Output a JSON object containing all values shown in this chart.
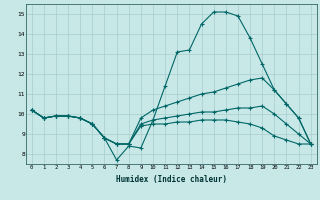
{
  "xlabel": "Humidex (Indice chaleur)",
  "background_color": "#c8e8e8",
  "grid_color": "#a8cccc",
  "line_color": "#006666",
  "xlim": [
    -0.5,
    23.5
  ],
  "ylim": [
    7.5,
    15.5
  ],
  "xticks": [
    0,
    1,
    2,
    3,
    4,
    5,
    6,
    7,
    8,
    9,
    10,
    11,
    12,
    13,
    14,
    15,
    16,
    17,
    18,
    19,
    20,
    21,
    22,
    23
  ],
  "yticks": [
    8,
    9,
    10,
    11,
    12,
    13,
    14,
    15
  ],
  "line1_x": [
    0,
    1,
    2,
    3,
    4,
    5,
    6,
    7,
    8,
    9,
    10,
    11,
    12,
    13,
    14,
    15,
    16,
    17,
    18,
    19,
    20,
    21,
    22,
    23
  ],
  "line1_y": [
    10.2,
    9.8,
    9.9,
    9.9,
    9.8,
    9.5,
    8.8,
    7.7,
    8.4,
    8.3,
    9.7,
    11.4,
    13.1,
    13.2,
    14.5,
    15.1,
    15.1,
    14.9,
    13.8,
    12.5,
    11.2,
    10.5,
    9.8,
    8.5
  ],
  "line2_x": [
    0,
    1,
    2,
    3,
    4,
    5,
    6,
    7,
    8,
    9,
    10,
    11,
    12,
    13,
    14,
    15,
    16,
    17,
    18,
    19,
    20,
    21,
    22,
    23
  ],
  "line2_y": [
    10.2,
    9.8,
    9.9,
    9.9,
    9.8,
    9.5,
    8.8,
    8.5,
    8.5,
    9.8,
    10.2,
    10.4,
    10.6,
    10.8,
    11.0,
    11.1,
    11.3,
    11.5,
    11.7,
    11.8,
    11.2,
    10.5,
    9.8,
    8.5
  ],
  "line3_x": [
    0,
    1,
    2,
    3,
    4,
    5,
    6,
    7,
    8,
    9,
    10,
    11,
    12,
    13,
    14,
    15,
    16,
    17,
    18,
    19,
    20,
    21,
    22,
    23
  ],
  "line3_y": [
    10.2,
    9.8,
    9.9,
    9.9,
    9.8,
    9.5,
    8.8,
    8.5,
    8.5,
    9.5,
    9.7,
    9.8,
    9.9,
    10.0,
    10.1,
    10.1,
    10.2,
    10.3,
    10.3,
    10.4,
    10.0,
    9.5,
    9.0,
    8.5
  ],
  "line4_x": [
    0,
    1,
    2,
    3,
    4,
    5,
    6,
    7,
    8,
    9,
    10,
    11,
    12,
    13,
    14,
    15,
    16,
    17,
    18,
    19,
    20,
    21,
    22,
    23
  ],
  "line4_y": [
    10.2,
    9.8,
    9.9,
    9.9,
    9.8,
    9.5,
    8.8,
    8.5,
    8.5,
    9.4,
    9.5,
    9.5,
    9.6,
    9.6,
    9.7,
    9.7,
    9.7,
    9.6,
    9.5,
    9.3,
    8.9,
    8.7,
    8.5,
    8.5
  ]
}
